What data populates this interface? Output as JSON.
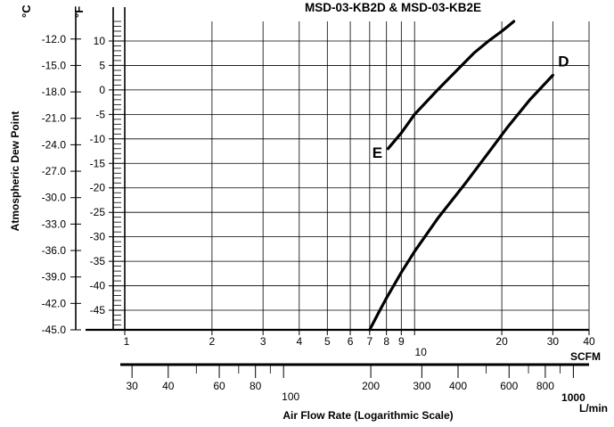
{
  "chart_data": {
    "type": "line",
    "title": "MSD-03-KB2D & MSD-03-KB2E",
    "ylabel": "Atmospheric Dew Point",
    "xlabel": "Air Flow Rate (Logarithmic Scale)",
    "x_scale": "log",
    "xlim": [
      1,
      40
    ],
    "x_unit": "SCFM",
    "x_ticks": [
      1,
      2,
      3,
      4,
      5,
      6,
      7,
      8,
      9,
      10,
      20,
      30,
      40
    ],
    "x_tick_labels": [
      "1",
      "2",
      "3",
      "4",
      "5",
      "6",
      "7",
      "8",
      "9",
      "10",
      "20",
      "30",
      "40"
    ],
    "x2_unit": "L/min",
    "x2_ticks": [
      30,
      40,
      60,
      80,
      100,
      200,
      300,
      400,
      600,
      800,
      1000
    ],
    "x2_tick_labels": [
      "30",
      "40",
      "60",
      "80",
      "100",
      "200",
      "300",
      "400",
      "600",
      "800",
      "1000"
    ],
    "x2_minor_ticks": [
      50,
      70,
      90,
      500,
      700,
      900
    ],
    "ylim_celsius": [
      -45,
      -10
    ],
    "y_celsius_unit": "°C",
    "y_celsius_ticks": [
      -12.0,
      -15.0,
      -18.0,
      -21.0,
      -24.0,
      -27.0,
      -30.0,
      -33.0,
      -36.0,
      -39.0,
      -42.0,
      -45.0
    ],
    "y_celsius_tick_labels": [
      "-12.0",
      "-15.0",
      "-18.0",
      "-21.0",
      "-24.0",
      "-27.0",
      "-30.0",
      "-33.0",
      "-36.0",
      "-39.0",
      "-42.0",
      "-45.0"
    ],
    "y_fahrenheit_unit": "°F",
    "y_fahrenheit_ticks": [
      10,
      5,
      0,
      -5,
      -10,
      -15,
      -20,
      -25,
      -30,
      -35,
      -40,
      -45
    ],
    "y_fahrenheit_tick_labels": [
      "10",
      "5",
      "0",
      "-5",
      "-10",
      "-15",
      "-20",
      "-25",
      "-30",
      "-35",
      "-40",
      "-45"
    ],
    "grid": true,
    "series": [
      {
        "name": "D",
        "unit_y": "°F",
        "x": [
          7.0,
          7.5,
          8.0,
          9.0,
          10.0,
          12.0,
          15.0,
          18.0,
          21.0,
          25.0,
          30.0
        ],
        "y": [
          -49.0,
          -45.6,
          -42.5,
          -37.3,
          -33.0,
          -26.3,
          -19.0,
          -12.8,
          -7.5,
          -2.0,
          3.0
        ]
      },
      {
        "name": "E",
        "unit_y": "°F",
        "x": [
          8.1,
          9.0,
          10.0,
          12.0,
          14.0,
          16.0,
          18.0,
          20.0,
          21.0,
          22.0
        ],
        "y": [
          -12.0,
          -8.8,
          -5.0,
          0.0,
          4.0,
          7.5,
          10.0,
          12.0,
          13.0,
          14.0
        ]
      }
    ]
  }
}
